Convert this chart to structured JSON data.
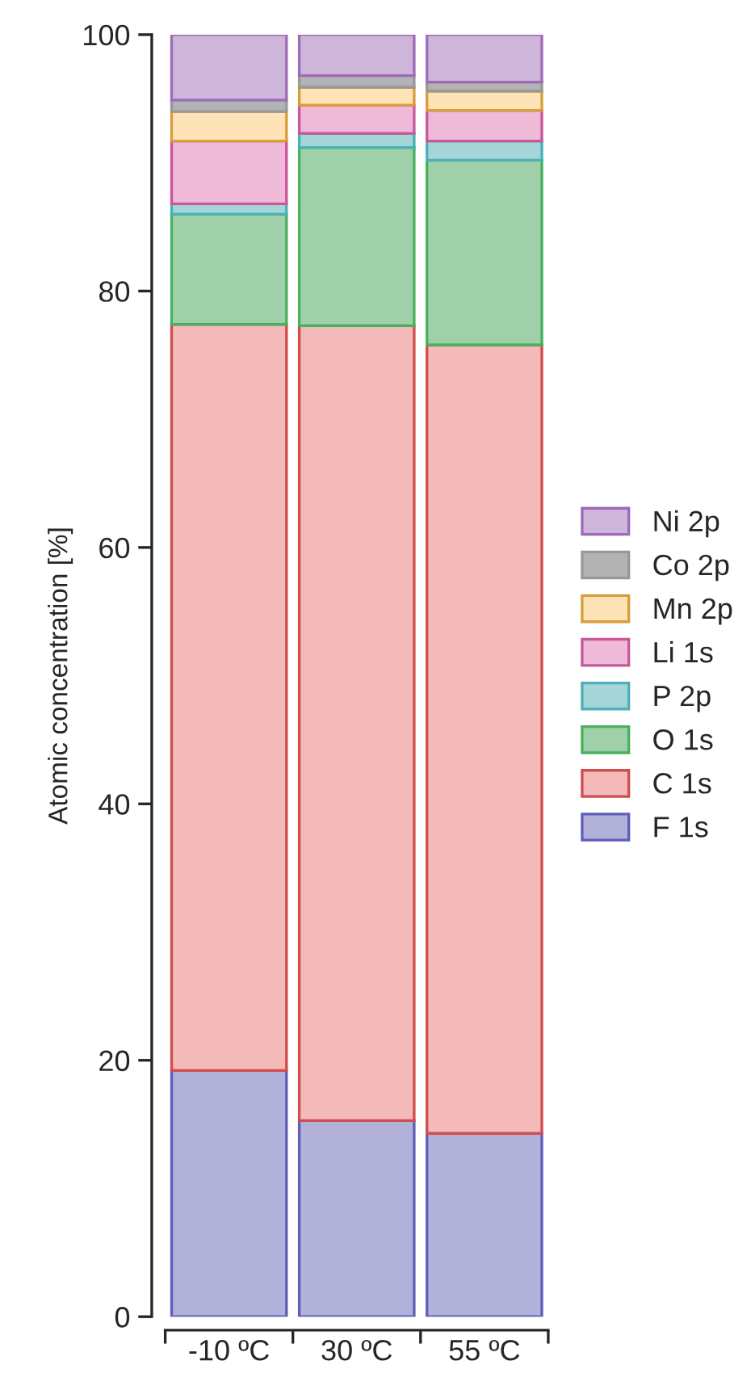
{
  "chart_data": {
    "type": "bar",
    "stacked": true,
    "ylabel": "Atomic concentration [%]",
    "categories": [
      "-10 ºC",
      "30 ºC",
      "55 ºC"
    ],
    "ylim": [
      0,
      100
    ],
    "yticks": [
      0,
      20,
      40,
      60,
      80,
      100
    ],
    "grid": false,
    "legend": "right",
    "series": [
      {
        "name": "F 1s",
        "color": "#b1b1da",
        "values": [
          19.2,
          15.3,
          14.3
        ]
      },
      {
        "name": "C 1s",
        "color": "#f4b9b9",
        "values": [
          58.2,
          62.0,
          61.5
        ]
      },
      {
        "name": "O 1s",
        "color": "#a0d0aa",
        "values": [
          8.6,
          13.9,
          14.4
        ]
      },
      {
        "name": "P 2p",
        "color": "#a6d5d8",
        "values": [
          0.8,
          1.1,
          1.5
        ]
      },
      {
        "name": "Li 1s",
        "color": "#eebad8",
        "values": [
          4.9,
          2.2,
          2.4
        ]
      },
      {
        "name": "Mn 2p",
        "color": "#fde3b6",
        "values": [
          2.3,
          1.4,
          1.5
        ]
      },
      {
        "name": "Co 2p",
        "color": "#b3b3b3",
        "values": [
          0.9,
          0.9,
          0.7
        ]
      },
      {
        "name": "Ni 2p",
        "color": "#cdb6d9",
        "values": [
          5.1,
          3.2,
          3.7
        ]
      }
    ]
  }
}
